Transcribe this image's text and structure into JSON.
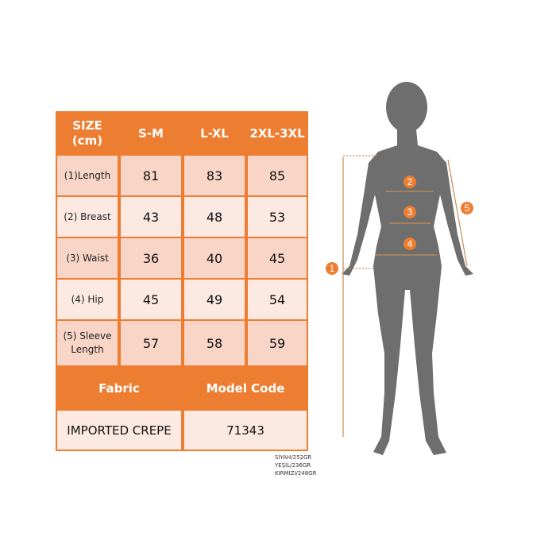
{
  "table": {
    "header": {
      "size_label": "SIZE\n(cm)",
      "sizes": [
        "S-M",
        "L-XL",
        "2XL-3XL"
      ]
    },
    "rows": [
      {
        "label": "(1)Length",
        "values": [
          "81",
          "83",
          "85"
        ]
      },
      {
        "label": "(2) Breast",
        "values": [
          "43",
          "48",
          "53"
        ]
      },
      {
        "label": "(3) Waist",
        "values": [
          "36",
          "40",
          "45"
        ]
      },
      {
        "label": "(4) Hip",
        "values": [
          "45",
          "49",
          "54"
        ]
      },
      {
        "label": "(5) Sleeve Length",
        "values": [
          "57",
          "58",
          "59"
        ]
      }
    ],
    "fabric_label": "Fabric",
    "model_code_label": "Model Code",
    "fabric_value": "IMPORTED CREPE",
    "model_code_value": "71343"
  },
  "weights": [
    "SİYAH/252GR",
    "YEŞİL/236GR",
    "KIRMIZI/248GR"
  ],
  "figure": {
    "markers": [
      "1",
      "2",
      "3",
      "4",
      "5"
    ]
  },
  "colors": {
    "header": "#ed7d31",
    "row_dark": "#f8d5c6",
    "row_light": "#fbe9e2",
    "silhouette": "#6e6e6e"
  }
}
